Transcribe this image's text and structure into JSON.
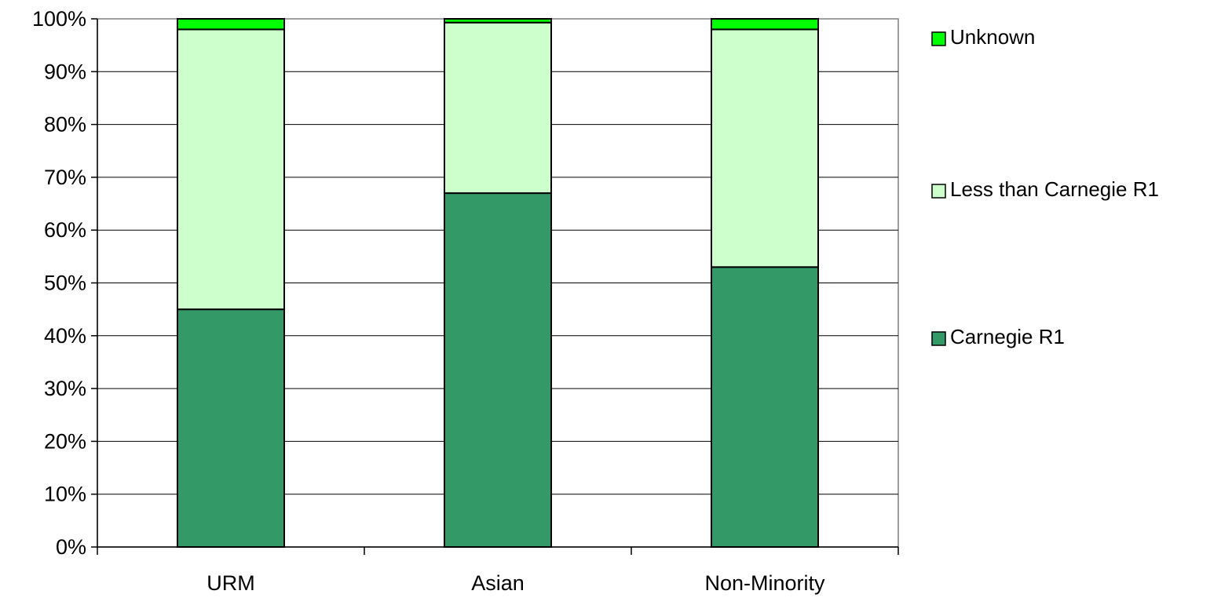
{
  "chart_data": {
    "type": "bar",
    "stacked": true,
    "normalized_percent": true,
    "categories": [
      "URM",
      "Asian",
      "Non-Minority"
    ],
    "series": [
      {
        "name": "Carnegie R1",
        "values": [
          45,
          67,
          53
        ],
        "color": "#339966"
      },
      {
        "name": "Less than Carnegie R1",
        "values": [
          53,
          32.3,
          45
        ],
        "color": "#ccffcc"
      },
      {
        "name": "Unknown",
        "values": [
          2,
          0.7,
          2
        ],
        "color": "#00ff00"
      }
    ],
    "yticks": [
      "0%",
      "10%",
      "20%",
      "30%",
      "40%",
      "50%",
      "60%",
      "70%",
      "80%",
      "90%",
      "100%"
    ],
    "ylim": [
      0,
      100
    ],
    "title": "",
    "xlabel": "",
    "ylabel": "",
    "grid": true,
    "legend_position": "right",
    "legend_order": [
      "Unknown",
      "Less than Carnegie R1",
      "Carnegie R1"
    ]
  }
}
